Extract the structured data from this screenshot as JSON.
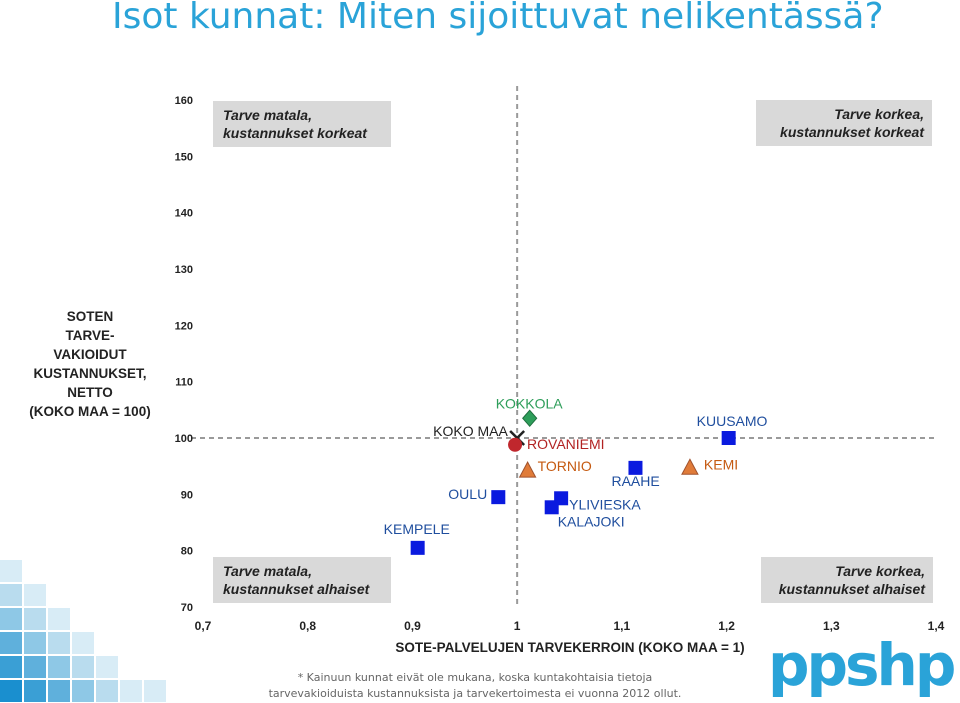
{
  "page": {
    "title": "Isot kunnat: Miten sijoittuvat nelikentässä?"
  },
  "chart_data": {
    "type": "scatter",
    "xlabel": "SOTE-PALVELUJEN TARVEKERROIN (KOKO MAA = 1)",
    "ylabel_lines": [
      "SOTEN",
      "TARVE-",
      "VAKIOIDUT",
      "KUSTANNUKSET,",
      "NETTO",
      "(KOKO MAA = 100)"
    ],
    "xlim": [
      0.7,
      1.4
    ],
    "ylim": [
      70,
      160
    ],
    "x_ticks": [
      "0,7",
      "0,8",
      "0,9",
      "1",
      "1,1",
      "1,2",
      "1,3",
      "1,4"
    ],
    "y_ticks": [
      "70",
      "80",
      "90",
      "100",
      "110",
      "120",
      "130",
      "140",
      "150",
      "160"
    ],
    "reference": {
      "x": 1.0,
      "y": 100
    },
    "quadrants": {
      "top_left": [
        "Tarve matala,",
        "kustannukset korkeat"
      ],
      "top_right": [
        "Tarve korkea,",
        "kustannukset korkeat"
      ],
      "bottom_left": [
        "Tarve matala,",
        "kustannukset alhaiset"
      ],
      "bottom_right": [
        "Tarve korkea,",
        "kustannukset alhaiset"
      ]
    },
    "points": [
      {
        "label": "KOKO MAA",
        "x": 1.0,
        "y": 100,
        "marker": "x",
        "color": "#222222",
        "text_color": "#222222"
      },
      {
        "label": "KOKKOLA",
        "x": 1.012,
        "y": 103.5,
        "marker": "diamond",
        "color": "#2e9e5a",
        "text_color": "#2e9e5a"
      },
      {
        "label": "ROVANIEMI",
        "x": 0.998,
        "y": 98.8,
        "marker": "circle",
        "color": "#c0272d",
        "text_color": "#b22222"
      },
      {
        "label": "TORNIO",
        "x": 1.01,
        "y": 94.3,
        "marker": "triangle",
        "color": "#e07b39",
        "text_color": "#c55a11"
      },
      {
        "label": "KEMI",
        "x": 1.165,
        "y": 94.8,
        "marker": "triangle",
        "color": "#e07b39",
        "text_color": "#c55a11"
      },
      {
        "label": "KUUSAMO",
        "x": 1.202,
        "y": 100,
        "marker": "square",
        "color": "#0a1adf",
        "text_color": "#1f4e9e"
      },
      {
        "label": "RAAHE",
        "x": 1.113,
        "y": 94.7,
        "marker": "square",
        "color": "#0a1adf",
        "text_color": "#1f4e9e"
      },
      {
        "label": "OULU",
        "x": 0.982,
        "y": 89.5,
        "marker": "square",
        "color": "#0a1adf",
        "text_color": "#1f4e9e"
      },
      {
        "label": "YLIVIESKA",
        "x": 1.042,
        "y": 89.3,
        "marker": "square",
        "color": "#0a1adf",
        "text_color": "#1f4e9e"
      },
      {
        "label": "KALAJOKI",
        "x": 1.033,
        "y": 87.7,
        "marker": "square",
        "color": "#0a1adf",
        "text_color": "#1f4e9e"
      },
      {
        "label": "KEMPELE",
        "x": 0.905,
        "y": 80.5,
        "marker": "square",
        "color": "#0a1adf",
        "text_color": "#1f4e9e"
      }
    ]
  },
  "footnote": [
    "* Kainuun kunnat eivät ole mukana, koska kuntakohtaisia tietoja",
    "tarvevakioiduista kustannuksista ja tarvekertoimesta ei vuonna 2012 ollut."
  ],
  "logo": {
    "text": "ppshp",
    "color": "#2aa3d8"
  }
}
